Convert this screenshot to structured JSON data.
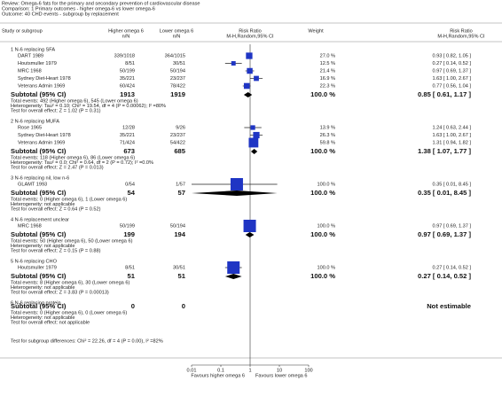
{
  "header": {
    "review": "Review:  Omega-6 fats for the primary and secondary prevention of cardiovascular disease",
    "comparison": "Comparison:  1 Primary outcomes - higher omega-6 vs lower omega-6",
    "outcome": "Outcome:  40 CHD events - subgroup by replacement"
  },
  "columns": {
    "study": "Study or subgroup",
    "e1": "Higher omega 6",
    "e1_sub": "n/N",
    "e2": "Lower omega 6",
    "e2_sub": "n/N",
    "plot": "Risk Ratio",
    "plot_sub": "M-H,Random,95% CI",
    "weight": "Weight",
    "ci": "Risk Ratio",
    "ci_sub": "M-H,Random,95% CI"
  },
  "groups": [
    {
      "title": "1 N-6 replacing SFA",
      "studies": [
        {
          "name": "DART 1989",
          "e1": "339/1018",
          "e2": "364/1015",
          "weight": {
            "value": 27.0,
            "label": "27.0 %"
          },
          "ci": "0.93 [ 0.82, 1.05 ]",
          "rr": 0.93,
          "lo": 0.82,
          "hi": 1.05
        },
        {
          "name": "Houtsmuller 1979",
          "e1": "8/51",
          "e2": "30/51",
          "weight": {
            "value": 12.5,
            "label": "12.5 %"
          },
          "ci": "0.27 [ 0.14, 0.52 ]",
          "rr": 0.27,
          "lo": 0.14,
          "hi": 0.52
        },
        {
          "name": "MRC 1968",
          "e1": "50/199",
          "e2": "50/194",
          "weight": {
            "value": 21.4,
            "label": "21.4 %"
          },
          "ci": "0.97 [ 0.69, 1.37 ]",
          "rr": 0.97,
          "lo": 0.69,
          "hi": 1.37
        },
        {
          "name": "Sydney Diet-Heart 1978",
          "e1": "35/221",
          "e2": "23/237",
          "weight": {
            "value": 16.9,
            "label": "16.9 %"
          },
          "ci": "1.63 [ 1.00, 2.67 ]",
          "rr": 1.63,
          "lo": 1.0,
          "hi": 2.67
        },
        {
          "name": "Veterans Admin 1969",
          "e1": "60/424",
          "e2": "78/422",
          "weight": {
            "value": 22.3,
            "label": "22.3 %"
          },
          "ci": "0.77 [ 0.56, 1.04 ]",
          "rr": 0.77,
          "lo": 0.56,
          "hi": 1.04
        }
      ],
      "subtotal": {
        "label": "Subtotal (95% CI)",
        "n1": 1913,
        "n2": 1919,
        "weight": "100.0 %",
        "ci": "0.85 [ 0.61, 1.17 ]",
        "rr": 0.85,
        "lo": 0.61,
        "hi": 1.17
      },
      "total_events": "Total events: 492 (Higher omega 6), 545 (Lower omega 6)",
      "heterogeneity": "Heterogeneity: Tau² = 0.10; Chi² = 19.54, df = 4 (P = 0.00062); I² =80%",
      "overall_effect": "Test for overall effect: Z = 1.02 (P = 0.31)"
    },
    {
      "title": "2 N-6 replacing MUFA",
      "studies": [
        {
          "name": "Rose 1965",
          "e1": "12/28",
          "e2": "9/26",
          "weight": {
            "value": 13.9,
            "label": "13.9 %"
          },
          "ci": "1.24 [ 0.63, 2.44 ]",
          "rr": 1.24,
          "lo": 0.63,
          "hi": 2.44
        },
        {
          "name": "Sydney Diet-Heart 1978",
          "e1": "35/221",
          "e2": "23/237",
          "weight": {
            "value": 26.3,
            "label": "26.3 %"
          },
          "ci": "1.63 [ 1.00, 2.67 ]",
          "rr": 1.63,
          "lo": 1.0,
          "hi": 2.67
        },
        {
          "name": "Veterans Admin 1969",
          "e1": "71/424",
          "e2": "54/422",
          "weight": {
            "value": 59.8,
            "label": "59.8 %"
          },
          "ci": "1.31 [ 0.94, 1.82 ]",
          "rr": 1.31,
          "lo": 0.94,
          "hi": 1.82
        }
      ],
      "subtotal": {
        "label": "Subtotal (95% CI)",
        "n1": 673,
        "n2": 685,
        "weight": "100.0 %",
        "ci": "1.38 [ 1.07, 1.77 ]",
        "rr": 1.38,
        "lo": 1.07,
        "hi": 1.77
      },
      "total_events": "Total events: 118 (Higher omega 6), 86 (Lower omega 6)",
      "heterogeneity": "Heterogeneity: Tau² = 0.0; Chi² = 0.64, df = 2 (P = 0.72); I² =0.0%",
      "overall_effect": "Test for overall effect: Z = 2.47 (P = 0.013)"
    },
    {
      "title": "3 N-6 replacing nil, low n-6",
      "studies": [
        {
          "name": "GLAMT 1993",
          "e1": "0/54",
          "e2": "1/57",
          "weight": {
            "value": 100.0,
            "label": "100.0 %"
          },
          "ci": "0.35 [ 0.01, 8.45 ]",
          "rr": 0.35,
          "lo": 0.01,
          "hi": 8.45
        }
      ],
      "subtotal": {
        "label": "Subtotal (95% CI)",
        "n1": 54,
        "n2": 57,
        "weight": "100.0 %",
        "ci": "0.35 [ 0.01, 8.45 ]",
        "rr": 0.35,
        "lo": 0.01,
        "hi": 8.45
      },
      "total_events": "Total events: 0 (Higher omega 6), 1 (Lower omega 6)",
      "heterogeneity": "Heterogeneity: not applicable",
      "overall_effect": "Test for overall effect: Z = 0.64 (P = 0.52)"
    },
    {
      "title": "4 N-6 replacement unclear",
      "studies": [
        {
          "name": "MRC 1968",
          "e1": "50/199",
          "e2": "50/194",
          "weight": {
            "value": 100.0,
            "label": "100.0 %"
          },
          "ci": "0.97 [ 0.69, 1.37 ]",
          "rr": 0.97,
          "lo": 0.69,
          "hi": 1.37
        }
      ],
      "subtotal": {
        "label": "Subtotal (95% CI)",
        "n1": 199,
        "n2": 194,
        "weight": "100.0 %",
        "ci": "0.97 [ 0.69, 1.37 ]",
        "rr": 0.97,
        "lo": 0.69,
        "hi": 1.37
      },
      "total_events": "Total events: 50 (Higher omega 6), 50 (Lower omega 6)",
      "heterogeneity": "Heterogeneity: not applicable",
      "overall_effect": "Test for overall effect: Z = 0.15 (P = 0.88)"
    },
    {
      "title": "5 N-6 replacing CHO",
      "studies": [
        {
          "name": "Houtsmuller 1979",
          "e1": "8/51",
          "e2": "30/51",
          "weight": {
            "value": 100.0,
            "label": "100.0 %"
          },
          "ci": "0.27 [ 0.14, 0.52 ]",
          "rr": 0.27,
          "lo": 0.14,
          "hi": 0.52
        }
      ],
      "subtotal": {
        "label": "Subtotal (95% CI)",
        "n1": 51,
        "n2": 51,
        "weight": "100.0 %",
        "ci": "0.27 [ 0.14, 0.52 ]",
        "rr": 0.27,
        "lo": 0.14,
        "hi": 0.52
      },
      "total_events": "Total events: 8 (Higher omega 6), 30 (Lower omega 6)",
      "heterogeneity": "Heterogeneity: not applicable",
      "overall_effect": "Test for overall effect: Z = 3.83 (P = 0.00013)"
    },
    {
      "title": "6 N-6 replacing protein",
      "studies": [],
      "subtotal": {
        "label": "Subtotal (95% CI)",
        "n1": 0,
        "n2": 0,
        "ci": "Not estimable"
      },
      "total_events": "Total events: 0 (Higher omega 6), 0 (Lower omega 6)",
      "heterogeneity": "Heterogeneity: not applicable",
      "overall_effect": "Test for overall effect: not applicable"
    }
  ],
  "subgroup_test": "Test for subgroup differences: Chi² = 22.26, df = 4 (P = 0.00), I² =82%",
  "axis": {
    "ticks": [
      0.01,
      0.1,
      1,
      10,
      100
    ],
    "left_label": "Favours higher omega 6",
    "right_label": "Favours lower omega 6"
  }
}
